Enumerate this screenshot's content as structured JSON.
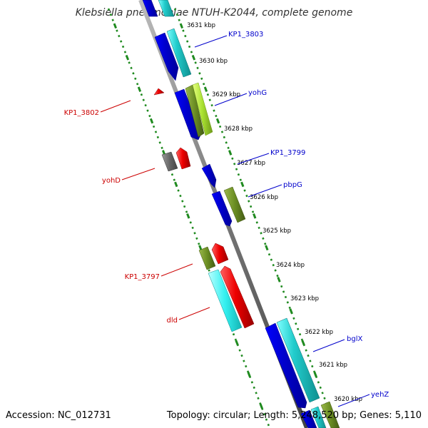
{
  "header": {
    "title": "Klebsiella pneumoniae NTUH-K2044, complete genome"
  },
  "footer": {
    "accession": "Accession: NC_012731",
    "topology": "Topology: circular; Length: 5,248,520 bp; Genes: 5,110"
  },
  "colors": {
    "backbone": "#777777",
    "dotted_ring": "#1f8a1f",
    "forward_label": "#0000cc",
    "reverse_label": "#cc0000",
    "blue": "#0000e6",
    "cyan": "#1fcfcf",
    "olive": "#6b8e23",
    "lime": "#9acd32",
    "red": "#ee0000",
    "gray": "#666666"
  },
  "scale": {
    "ticks": [
      "3631 kbp",
      "3630 kbp",
      "3629 kbp",
      "3628 kbp",
      "3627 kbp",
      "3626 kbp",
      "3625 kbp",
      "3624 kbp",
      "3623 kbp",
      "3622 kbp",
      "3621 kbp",
      "3620 kbp"
    ]
  },
  "gene_labels": {
    "forward": [
      "KP1_3803",
      "yohG",
      "KP1_3799",
      "pbpG",
      "bglX",
      "yehZ"
    ],
    "reverse": [
      "KP1_3802",
      "yohD",
      "KP1_3797",
      "dld"
    ]
  }
}
